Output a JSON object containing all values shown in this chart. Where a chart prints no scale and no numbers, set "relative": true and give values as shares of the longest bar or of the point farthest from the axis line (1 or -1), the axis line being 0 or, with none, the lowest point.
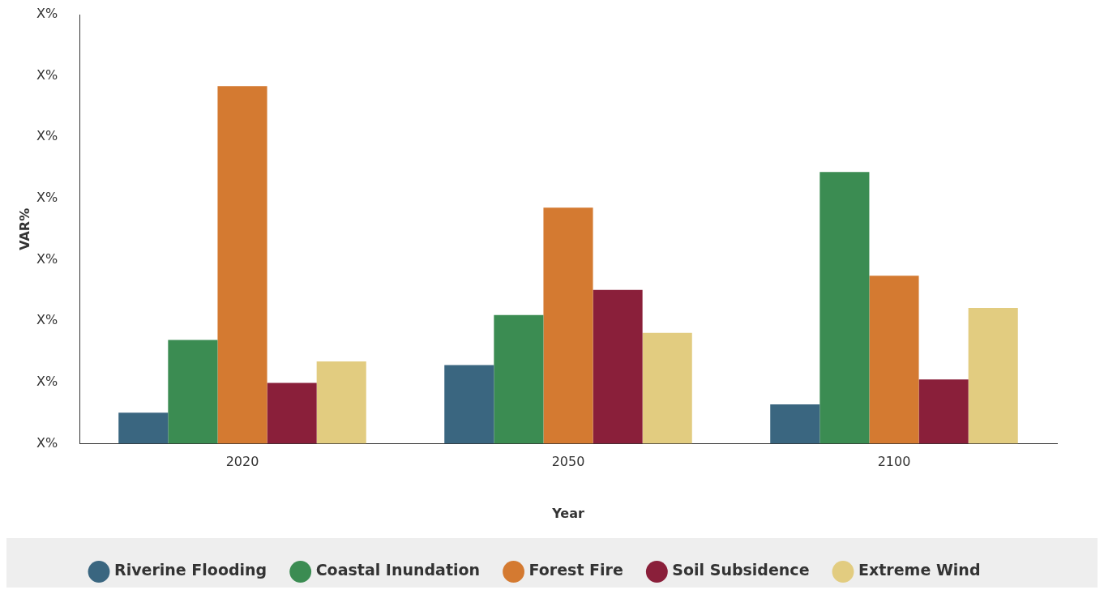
{
  "chart_data": {
    "type": "bar",
    "xlabel": "Year",
    "ylabel": "VAR%",
    "relative": true,
    "categories": [
      "2020",
      "2050",
      "2100"
    ],
    "series": [
      {
        "name": "Riverine Flooding",
        "color": "#3a6680",
        "values": [
          0.087,
          0.22,
          0.11
        ]
      },
      {
        "name": "Coastal Inundation",
        "color": "#3b8c52",
        "values": [
          0.29,
          0.36,
          0.76
        ]
      },
      {
        "name": "Forest Fire",
        "color": "#d47a31",
        "values": [
          1,
          0.66,
          0.47
        ]
      },
      {
        "name": "Soil Subsidence",
        "color": "#8a1f3a",
        "values": [
          0.17,
          0.43,
          0.18
        ]
      },
      {
        "name": "Extreme Wind",
        "color": "#e2cc80",
        "values": [
          0.23,
          0.31,
          0.38
        ]
      }
    ],
    "annotations": [
      "X%",
      "X%",
      "X%",
      "X%",
      "X%",
      "X%",
      "X%",
      "X%"
    ],
    "grid": false,
    "legend": "bottom",
    "marker": "circle"
  }
}
